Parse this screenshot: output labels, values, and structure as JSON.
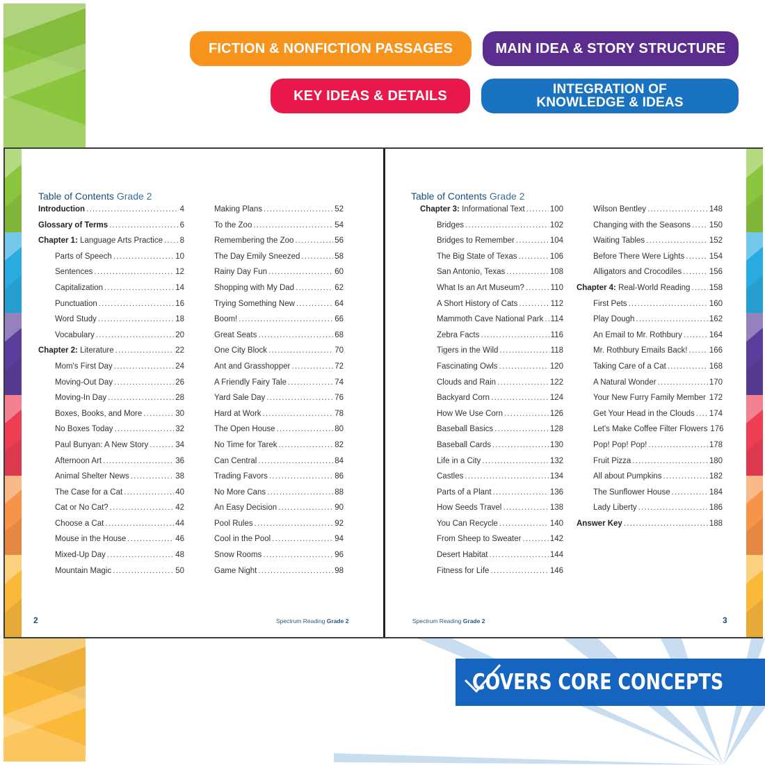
{
  "badges": [
    {
      "label": "FICTION & NONFICTION PASSAGES",
      "color": "#f7941d"
    },
    {
      "label": "MAIN IDEA & STORY STRUCTURE",
      "color": "#5b2d8e"
    },
    {
      "label": "KEY IDEAS & DETAILS",
      "color": "#e8194a"
    },
    {
      "label_line1": "INTEGRATION OF",
      "label_line2": "KNOWLEDGE & IDEAS",
      "color": "#1a73c1"
    }
  ],
  "left_page": {
    "title": "Table of Contents",
    "title_grade": "Grade 2",
    "page_number": "2",
    "footer_series": "Spectrum Reading",
    "footer_grade": "Grade 2",
    "col1": [
      {
        "label": "Introduction",
        "page": "4",
        "type": "bold"
      },
      {
        "label": "Glossary of Terms",
        "page": "6",
        "type": "bold"
      },
      {
        "chapter": "Chapter 1:",
        "label": "Language Arts Practice",
        "page": "8",
        "type": "chapter"
      },
      {
        "label": "Parts of Speech",
        "page": "10",
        "type": "indent"
      },
      {
        "label": "Sentences",
        "page": "12",
        "type": "indent"
      },
      {
        "label": "Capitalization",
        "page": "14",
        "type": "indent"
      },
      {
        "label": "Punctuation",
        "page": "16",
        "type": "indent"
      },
      {
        "label": "Word Study",
        "page": "18",
        "type": "indent"
      },
      {
        "label": "Vocabulary",
        "page": "20",
        "type": "indent"
      },
      {
        "chapter": "Chapter 2:",
        "label": "Literature",
        "page": "22",
        "type": "chapter"
      },
      {
        "label": "Mom's First Day",
        "page": "24",
        "type": "indent"
      },
      {
        "label": "Moving-Out Day",
        "page": "26",
        "type": "indent"
      },
      {
        "label": "Moving-In Day",
        "page": "28",
        "type": "indent"
      },
      {
        "label": "Boxes, Books, and More",
        "page": "30",
        "type": "indent"
      },
      {
        "label": "No Boxes Today",
        "page": "32",
        "type": "indent"
      },
      {
        "label": "Paul Bunyan: A New Story",
        "page": "34",
        "type": "indent"
      },
      {
        "label": "Afternoon Art",
        "page": "36",
        "type": "indent"
      },
      {
        "label": "Animal Shelter News",
        "page": "38",
        "type": "indent"
      },
      {
        "label": "The Case for a Cat",
        "page": "40",
        "type": "indent"
      },
      {
        "label": "Cat or No Cat?",
        "page": "42",
        "type": "indent"
      },
      {
        "label": "Choose a Cat",
        "page": "44",
        "type": "indent"
      },
      {
        "label": "Mouse in the House",
        "page": "46",
        "type": "indent"
      },
      {
        "label": "Mixed-Up Day",
        "page": "48",
        "type": "indent"
      },
      {
        "label": "Mountain Magic",
        "page": "50",
        "type": "indent"
      }
    ],
    "col2": [
      {
        "label": "Making Plans",
        "page": "52"
      },
      {
        "label": "To the Zoo",
        "page": "54"
      },
      {
        "label": "Remembering the Zoo",
        "page": "56"
      },
      {
        "label": "The Day Emily Sneezed",
        "page": "58"
      },
      {
        "label": "Rainy Day Fun",
        "page": "60"
      },
      {
        "label": "Shopping with My Dad",
        "page": "62"
      },
      {
        "label": "Trying Something New",
        "page": "64"
      },
      {
        "label": "Boom!",
        "page": "66"
      },
      {
        "label": "Great Seats",
        "page": "68"
      },
      {
        "label": "One City Block",
        "page": "70"
      },
      {
        "label": "Ant and Grasshopper",
        "page": "72"
      },
      {
        "label": "A Friendly Fairy Tale",
        "page": "74"
      },
      {
        "label": "Yard Sale Day",
        "page": "76"
      },
      {
        "label": "Hard at Work",
        "page": "78"
      },
      {
        "label": "The Open House",
        "page": "80"
      },
      {
        "label": "No Time for Tarek",
        "page": "82"
      },
      {
        "label": "Can Central",
        "page": "84"
      },
      {
        "label": "Trading Favors",
        "page": "86"
      },
      {
        "label": "No More Cans",
        "page": "88"
      },
      {
        "label": "An Easy Decision",
        "page": "90"
      },
      {
        "label": "Pool Rules",
        "page": "92"
      },
      {
        "label": "Cool in the Pool",
        "page": "94"
      },
      {
        "label": "Snow Rooms",
        "page": "96"
      },
      {
        "label": "Game Night",
        "page": "98"
      }
    ]
  },
  "right_page": {
    "title": "Table of Contents",
    "title_grade": "Grade 2",
    "page_number": "3",
    "footer_series": "Spectrum Reading",
    "footer_grade": "Grade 2",
    "col1": [
      {
        "chapter": "Chapter 3:",
        "label": "Informational Text",
        "page": "100",
        "type": "chapter"
      },
      {
        "label": "Bridges",
        "page": "102",
        "type": "indent"
      },
      {
        "label": "Bridges to Remember",
        "page": "104",
        "type": "indent"
      },
      {
        "label": "The Big State of Texas",
        "page": "106",
        "type": "indent"
      },
      {
        "label": "San Antonio, Texas",
        "page": "108",
        "type": "indent"
      },
      {
        "label": "What Is an Art Museum?",
        "page": "110",
        "type": "indent"
      },
      {
        "label": "A Short History of Cats",
        "page": "112",
        "type": "indent"
      },
      {
        "label": "Mammoth Cave National Park",
        "page": "114",
        "type": "indent"
      },
      {
        "label": "Zebra Facts",
        "page": "116",
        "type": "indent"
      },
      {
        "label": "Tigers in the Wild",
        "page": "118",
        "type": "indent"
      },
      {
        "label": "Fascinating Owls",
        "page": "120",
        "type": "indent"
      },
      {
        "label": "Clouds and Rain",
        "page": "122",
        "type": "indent"
      },
      {
        "label": "Backyard Corn",
        "page": "124",
        "type": "indent"
      },
      {
        "label": "How We Use Corn",
        "page": "126",
        "type": "indent"
      },
      {
        "label": "Baseball Basics",
        "page": "128",
        "type": "indent"
      },
      {
        "label": "Baseball Cards",
        "page": "130",
        "type": "indent"
      },
      {
        "label": "Life in a City",
        "page": "132",
        "type": "indent"
      },
      {
        "label": "Castles",
        "page": "134",
        "type": "indent"
      },
      {
        "label": "Parts of a Plant",
        "page": "136",
        "type": "indent"
      },
      {
        "label": "How Seeds Travel",
        "page": "138",
        "type": "indent"
      },
      {
        "label": "You Can Recycle",
        "page": "140",
        "type": "indent"
      },
      {
        "label": "From Sheep to Sweater",
        "page": "142",
        "type": "indent"
      },
      {
        "label": "Desert Habitat",
        "page": "144",
        "type": "indent"
      },
      {
        "label": "Fitness for Life",
        "page": "146",
        "type": "indent"
      }
    ],
    "col2": [
      {
        "label": "Wilson Bentley",
        "page": "148",
        "type": "indent"
      },
      {
        "label": "Changing with the Seasons",
        "page": "150",
        "type": "indent"
      },
      {
        "label": "Waiting Tables",
        "page": "152",
        "type": "indent"
      },
      {
        "label": "Before There Were Lights",
        "page": "154",
        "type": "indent"
      },
      {
        "label": "Alligators and Crocodiles",
        "page": "156",
        "type": "indent"
      },
      {
        "chapter": "Chapter 4:",
        "label": "Real-World Reading",
        "page": "158",
        "type": "chapter"
      },
      {
        "label": "First Pets",
        "page": "160",
        "type": "indent"
      },
      {
        "label": "Play Dough",
        "page": "162",
        "type": "indent"
      },
      {
        "label": "An Email to Mr. Rothbury",
        "page": "164",
        "type": "indent"
      },
      {
        "label": "Mr. Rothbury Emails Back!",
        "page": "166",
        "type": "indent"
      },
      {
        "label": "Taking Care of a Cat",
        "page": "168",
        "type": "indent"
      },
      {
        "label": "A Natural Wonder",
        "page": "170",
        "type": "indent"
      },
      {
        "label": "Your New Furry Family Member",
        "page": "172",
        "type": "indent"
      },
      {
        "label": "Get Your Head in the Clouds",
        "page": "174",
        "type": "indent"
      },
      {
        "label": "Let's Make Coffee Filter Flowers",
        "page": "176",
        "type": "indent"
      },
      {
        "label": "Pop! Pop! Pop!",
        "page": "178",
        "type": "indent"
      },
      {
        "label": "Fruit Pizza",
        "page": "180",
        "type": "indent"
      },
      {
        "label": "All about Pumpkins",
        "page": "182",
        "type": "indent"
      },
      {
        "label": "The Sunflower House",
        "page": "184",
        "type": "indent"
      },
      {
        "label": "Lady Liberty",
        "page": "186",
        "type": "indent"
      },
      {
        "label": "Answer Key",
        "page": "188",
        "type": "bold"
      }
    ]
  },
  "banner": {
    "label": "COVERS CORE CONCEPTS",
    "icon": "checkbox-check-icon",
    "color": "#1565c0"
  },
  "tab_colors": [
    "#8cc63f",
    "#29abe2",
    "#5b3e9c",
    "#ee3e54",
    "#f7944a",
    "#fbb93a"
  ]
}
